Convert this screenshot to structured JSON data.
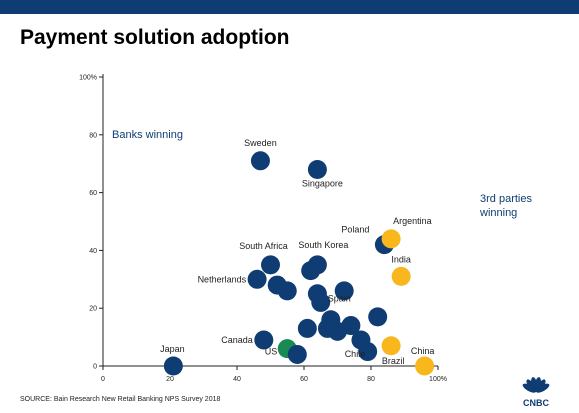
{
  "header": {
    "title": "Payment solution adoption"
  },
  "footer": {
    "source": "SOURCE: Bain Research New Retail Banking NPS Survey 2018"
  },
  "logo": {
    "text": "CNBC",
    "icon": "cnbc-peacock-icon",
    "color": "#0f3d73"
  },
  "colors": {
    "bank": "#0f3d73",
    "third_party": "#f7b71d",
    "us": "#1a8a54",
    "topbar": "#0f3d73"
  },
  "chart_data": {
    "type": "scatter",
    "title": "Payment solution adoption",
    "xlabel": "",
    "ylabel": "",
    "xlim": [
      0,
      100
    ],
    "ylim": [
      0,
      100
    ],
    "x_ticks": [
      "0",
      "20",
      "40",
      "60",
      "80",
      "100%"
    ],
    "y_ticks": [
      "0",
      "20",
      "40",
      "60",
      "80",
      "100%"
    ],
    "grid": false,
    "annotations": [
      "Banks winning",
      "3rd parties",
      "winning"
    ],
    "points": [
      {
        "label": "Sweden",
        "x": 47,
        "y": 71,
        "group": "bank"
      },
      {
        "label": "Singapore",
        "x": 64,
        "y": 68,
        "group": "bank"
      },
      {
        "label": "Poland",
        "x": 84,
        "y": 42,
        "group": "bank"
      },
      {
        "label": "Argentina",
        "x": 86,
        "y": 44,
        "group": "third_party"
      },
      {
        "label": "India",
        "x": 89,
        "y": 31,
        "group": "third_party"
      },
      {
        "label": "South Africa",
        "x": 50,
        "y": 35,
        "group": "bank"
      },
      {
        "label": "South Korea",
        "x": 64,
        "y": 35,
        "group": "bank"
      },
      {
        "label": "",
        "x": 62,
        "y": 33,
        "group": "bank"
      },
      {
        "label": "Netherlands",
        "x": 46,
        "y": 30,
        "group": "bank"
      },
      {
        "label": "",
        "x": 52,
        "y": 28,
        "group": "bank"
      },
      {
        "label": "",
        "x": 55,
        "y": 26,
        "group": "bank"
      },
      {
        "label": "",
        "x": 64,
        "y": 25,
        "group": "bank"
      },
      {
        "label": "",
        "x": 72,
        "y": 26,
        "group": "bank"
      },
      {
        "label": "Spain",
        "x": 65,
        "y": 22,
        "group": "bank"
      },
      {
        "label": "",
        "x": 82,
        "y": 17,
        "group": "bank"
      },
      {
        "label": "",
        "x": 68,
        "y": 16,
        "group": "bank"
      },
      {
        "label": "",
        "x": 74,
        "y": 14,
        "group": "bank"
      },
      {
        "label": "",
        "x": 61,
        "y": 13,
        "group": "bank"
      },
      {
        "label": "",
        "x": 67,
        "y": 13,
        "group": "bank"
      },
      {
        "label": "",
        "x": 70,
        "y": 12,
        "group": "bank"
      },
      {
        "label": "Canada",
        "x": 48,
        "y": 9,
        "group": "bank"
      },
      {
        "label": "Chile",
        "x": 77,
        "y": 9,
        "group": "bank"
      },
      {
        "label": "US",
        "x": 55,
        "y": 6,
        "group": "us"
      },
      {
        "label": "",
        "x": 58,
        "y": 4,
        "group": "bank"
      },
      {
        "label": "",
        "x": 79,
        "y": 5,
        "group": "bank"
      },
      {
        "label": "Brazil",
        "x": 86,
        "y": 7,
        "group": "third_party"
      },
      {
        "label": "China",
        "x": 96,
        "y": 0,
        "group": "third_party"
      },
      {
        "label": "Japan",
        "x": 21,
        "y": 0,
        "group": "bank"
      }
    ]
  }
}
